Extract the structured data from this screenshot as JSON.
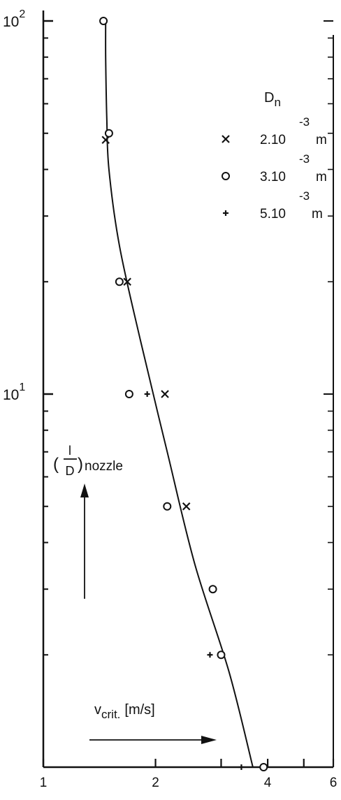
{
  "chart_data": {
    "type": "scatter",
    "x_scale": "log",
    "y_scale": "log",
    "xlim": [
      1,
      6
    ],
    "ylim": [
      1,
      100
    ],
    "x_ticks": [
      {
        "value": 1,
        "label": "1"
      },
      {
        "value": 2,
        "label": "2"
      },
      {
        "value": 3,
        "label": ""
      },
      {
        "value": 4,
        "label": "4"
      },
      {
        "value": 5,
        "label": ""
      },
      {
        "value": 6,
        "label": "6"
      }
    ],
    "y_major_ticks": [
      {
        "value": 10,
        "base": "10",
        "exp": "1"
      },
      {
        "value": 100,
        "base": "10",
        "exp": "2"
      }
    ],
    "y_minor_ticks": [
      2,
      3,
      4,
      5,
      6,
      7,
      8,
      9,
      20,
      30,
      40,
      50,
      60,
      70,
      80,
      90
    ],
    "xlabel": {
      "main": "v",
      "sub": "crit.",
      "unit": "[m/s]"
    },
    "ylabel": {
      "open": "(",
      "num": "l",
      "den": "D",
      "close": ")",
      "sub": "nozzle"
    },
    "legend": {
      "title": "D",
      "title_sub": "n",
      "position": "top-right",
      "entries": [
        {
          "marker": "x",
          "text": "2.10",
          "exp": "-3",
          "unit": "m"
        },
        {
          "marker": "o",
          "text": "3.10",
          "exp": "-3",
          "unit": "m"
        },
        {
          "marker": "+",
          "text": "5.10",
          "exp": "-3",
          "unit": "m"
        }
      ]
    },
    "series": [
      {
        "marker": "x",
        "points": [
          [
            1.47,
            48
          ],
          [
            1.68,
            20
          ],
          [
            2.12,
            10
          ],
          [
            2.42,
            5
          ]
        ]
      },
      {
        "marker": "o",
        "points": [
          [
            1.45,
            100
          ],
          [
            1.5,
            50
          ],
          [
            1.6,
            20
          ],
          [
            1.7,
            10
          ],
          [
            2.15,
            5
          ],
          [
            2.85,
            3
          ],
          [
            3.0,
            2
          ],
          [
            3.9,
            1
          ]
        ]
      },
      {
        "marker": "+",
        "points": [
          [
            1.9,
            10
          ],
          [
            2.8,
            2
          ],
          [
            3.4,
            1
          ]
        ]
      }
    ],
    "fit_curve": [
      [
        1.47,
        100
      ],
      [
        1.47,
        80
      ],
      [
        1.48,
        55
      ],
      [
        1.5,
        40
      ],
      [
        1.6,
        25
      ],
      [
        1.82,
        14
      ],
      [
        2.15,
        7
      ],
      [
        2.55,
        3.5
      ],
      [
        3.15,
        1.8
      ],
      [
        3.65,
        1
      ]
    ]
  }
}
